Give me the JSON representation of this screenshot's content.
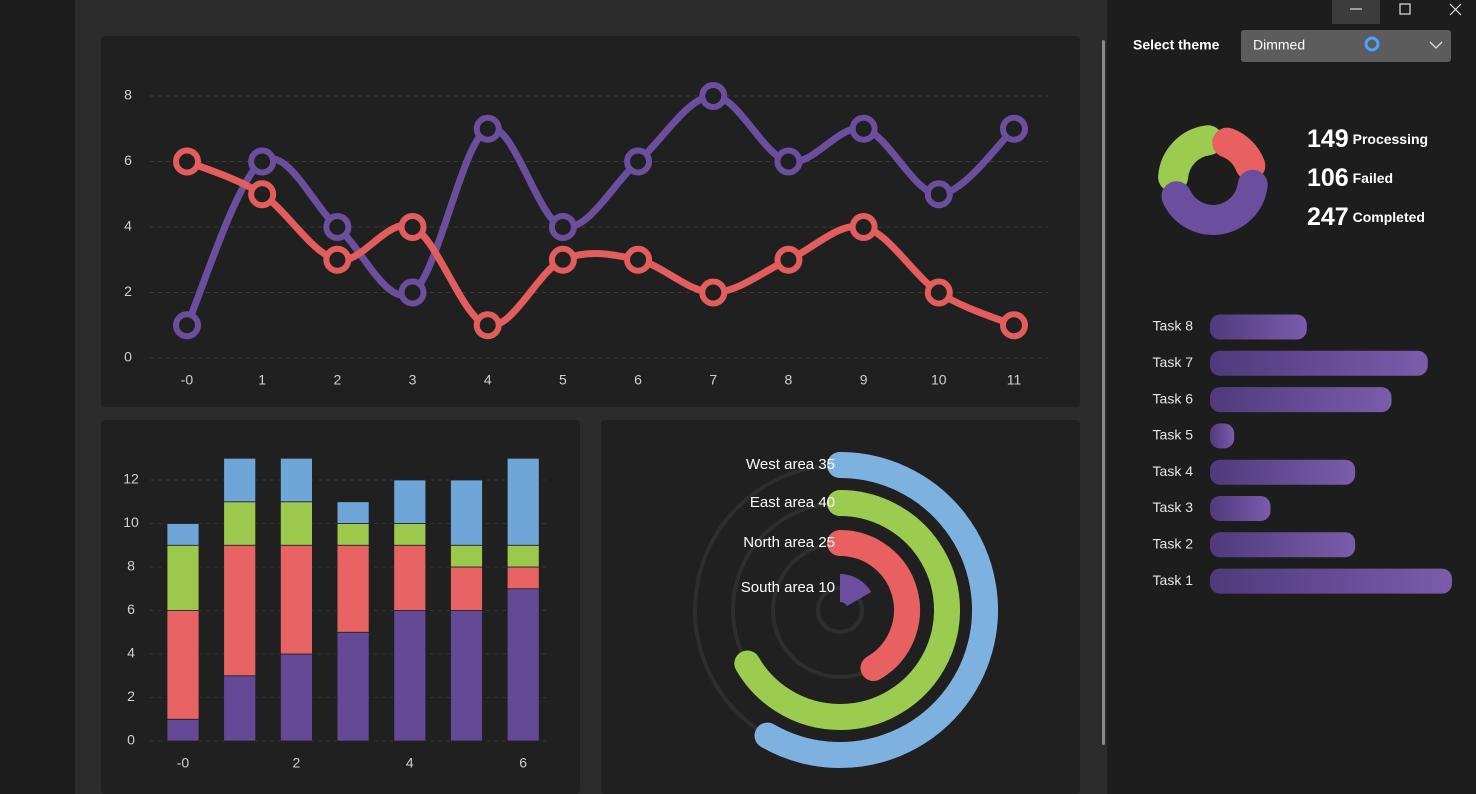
{
  "theme_selector": {
    "label": "Select theme",
    "value": "Dimmed"
  },
  "chart_data": [
    {
      "type": "line",
      "categories": [
        "-0",
        "1",
        "2",
        "3",
        "4",
        "5",
        "6",
        "7",
        "8",
        "9",
        "10",
        "11"
      ],
      "series": [
        {
          "color": "#6b4f9e",
          "values": [
            1,
            6,
            4,
            2,
            7,
            4,
            6,
            8,
            6,
            7,
            5,
            7
          ]
        },
        {
          "color": "#e35d5d",
          "values": [
            6,
            5,
            3,
            4,
            1,
            3,
            3,
            2,
            3,
            4,
            2,
            1
          ]
        }
      ],
      "ylim": [
        0,
        8
      ],
      "yticks": [
        0,
        2,
        4,
        6,
        8
      ],
      "grid": true
    },
    {
      "type": "stacked_bar",
      "categories": [
        "-0",
        null,
        "2",
        null,
        "4",
        null,
        "6"
      ],
      "series": [
        {
          "color": "#644a96",
          "values": [
            1,
            3,
            4,
            5,
            6,
            6,
            7
          ]
        },
        {
          "color": "#e86464",
          "values": [
            5,
            6,
            5,
            4,
            3,
            2,
            1
          ]
        },
        {
          "color": "#9cc84e",
          "values": [
            3,
            2,
            2,
            1,
            1,
            1,
            1
          ]
        },
        {
          "color": "#6fa6d8",
          "values": [
            1,
            2,
            2,
            1,
            2,
            3,
            4
          ]
        }
      ],
      "ylim": [
        0,
        13
      ],
      "yticks": [
        0,
        2,
        4,
        6,
        8,
        10,
        12
      ],
      "grid": true
    },
    {
      "type": "radial_bar",
      "categories": [
        "West area",
        "East area",
        "North area",
        "South area"
      ],
      "values": [
        35,
        40,
        25,
        10
      ],
      "colors": [
        "#7db1e0",
        "#9ccc4f",
        "#e86060",
        "#6b4f9e"
      ],
      "ylim": [
        0,
        60
      ]
    },
    {
      "type": "donut",
      "categories": [
        "Processing",
        "Failed",
        "Completed"
      ],
      "values": [
        149,
        106,
        247
      ],
      "colors": [
        "#9ccc4f",
        "#e86060",
        "#6b4f9e"
      ]
    },
    {
      "type": "horizontal_bar",
      "categories": [
        "Task 8",
        "Task 7",
        "Task 6",
        "Task 5",
        "Task 4",
        "Task 3",
        "Task 2",
        "Task 1"
      ],
      "values": [
        4,
        9,
        7.5,
        1,
        6,
        2.5,
        6,
        10
      ],
      "color": "#634a95",
      "xlim": [
        0,
        10
      ]
    }
  ]
}
